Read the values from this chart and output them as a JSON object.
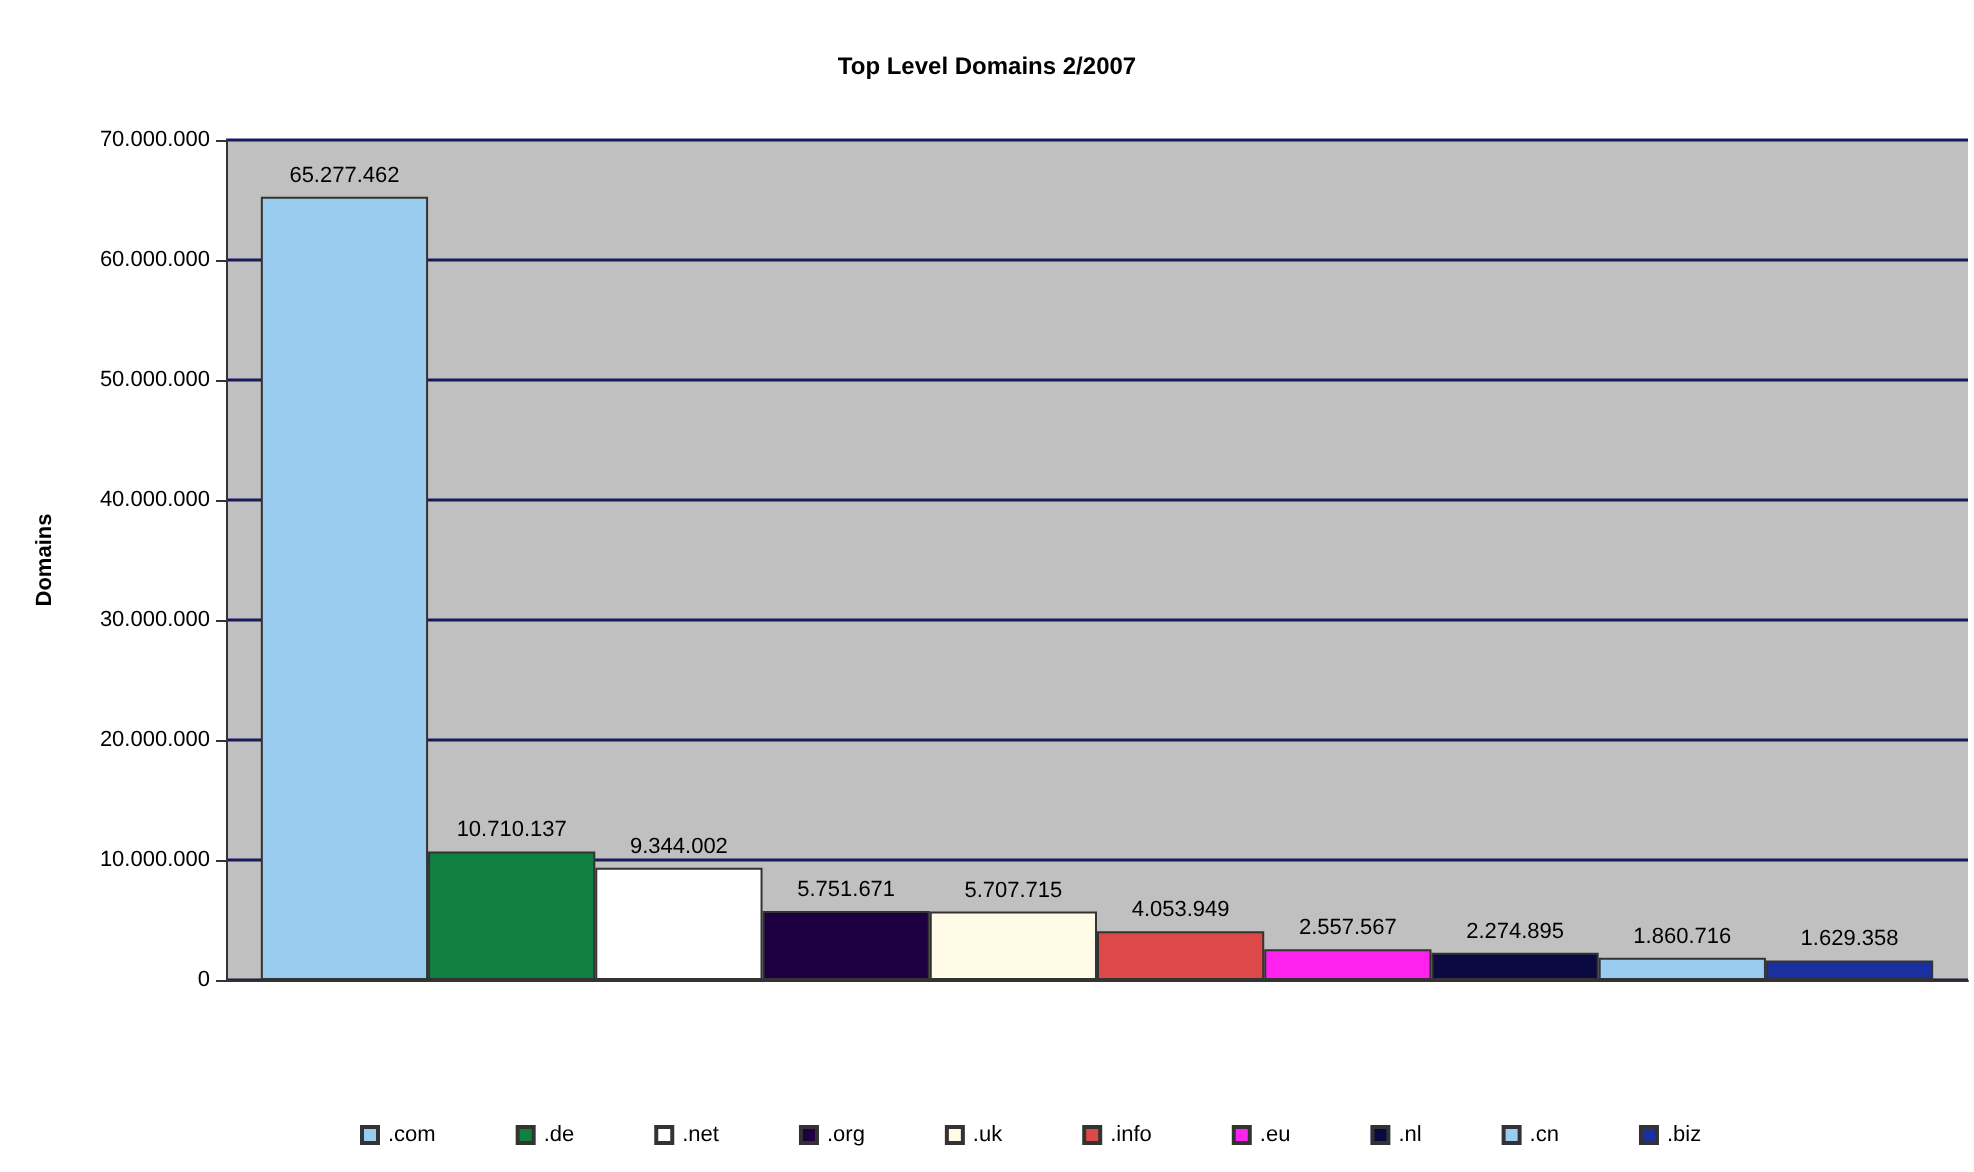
{
  "chart_data": {
    "type": "bar",
    "title": "Top Level Domains 2/2007",
    "ylabel": "Domains",
    "categories": [
      null
    ],
    "series": [
      {
        "name": ".com",
        "color": "#99ccee",
        "values": [
          65277462
        ],
        "value_labels": [
          "65.277.462"
        ]
      },
      {
        "name": ".de",
        "color": "#108040",
        "values": [
          10710137
        ],
        "value_labels": [
          "10.710.137"
        ]
      },
      {
        "name": ".net",
        "color": "#ffffff",
        "values": [
          9344002
        ],
        "value_labels": [
          "9.344.002"
        ]
      },
      {
        "name": ".org",
        "color": "#1c0040",
        "values": [
          5751671
        ],
        "value_labels": [
          "5.751.671"
        ]
      },
      {
        "name": ".uk",
        "color": "#fffbe6",
        "values": [
          5707715
        ],
        "value_labels": [
          "5.707.715"
        ]
      },
      {
        "name": ".info",
        "color": "#dd4848",
        "values": [
          4053949
        ],
        "value_labels": [
          "4.053.949"
        ]
      },
      {
        "name": ".eu",
        "color": "#ff22ee",
        "values": [
          2557567
        ],
        "value_labels": [
          "2.557.567"
        ]
      },
      {
        "name": ".nl",
        "color": "#0a0a40",
        "values": [
          2274895
        ],
        "value_labels": [
          "2.274.895"
        ]
      },
      {
        "name": ".cn",
        "color": "#99ccee",
        "values": [
          1860716
        ],
        "value_labels": [
          "1.860.716"
        ]
      },
      {
        "name": ".biz",
        "color": "#1a30a0",
        "values": [
          1629358
        ],
        "value_labels": [
          "1.629.358"
        ]
      }
    ],
    "ylim": [
      0,
      70000000
    ],
    "yticks": [
      {
        "value": 0,
        "label": "0"
      },
      {
        "value": 10000000,
        "label": "10.000.000"
      },
      {
        "value": 20000000,
        "label": "20.000.000"
      },
      {
        "value": 30000000,
        "label": "30.000.000"
      },
      {
        "value": 40000000,
        "label": "40.000.000"
      },
      {
        "value": 50000000,
        "label": "50.000.000"
      },
      {
        "value": 60000000,
        "label": "60.000.000"
      },
      {
        "value": 70000000,
        "label": "70.000.000"
      }
    ],
    "grid": "y",
    "legend": "bottom"
  }
}
